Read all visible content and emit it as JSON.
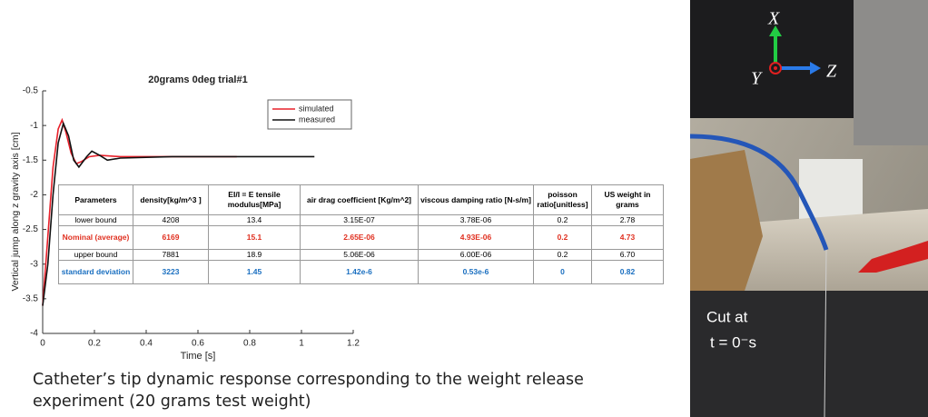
{
  "chart_data": {
    "type": "line",
    "title": "20grams 0deg trial#1",
    "x_label": "Time [s]",
    "y_label": "Vertical jump along z gravity axis [cm]",
    "xlim": [
      0,
      1.2
    ],
    "xticks": [
      0,
      0.2,
      0.4,
      0.6,
      0.8,
      1,
      1.2
    ],
    "ylim": [
      -4,
      -0.5
    ],
    "yticks": [
      -4,
      -3.5,
      -3,
      -2.5,
      -2,
      -1.5,
      -1,
      -0.5
    ],
    "legend": "upper right",
    "series": [
      {
        "name": "simulated",
        "color": "#e8202a",
        "x": [
          0,
          0.02,
          0.04,
          0.06,
          0.075,
          0.09,
          0.11,
          0.13,
          0.15,
          0.18,
          0.22,
          0.3,
          0.5,
          0.75
        ],
        "values": [
          -3.6,
          -2.6,
          -1.6,
          -1.05,
          -0.92,
          -1.1,
          -1.4,
          -1.55,
          -1.52,
          -1.45,
          -1.43,
          -1.45,
          -1.45,
          -1.45
        ]
      },
      {
        "name": "measured",
        "color": "#111111",
        "x": [
          0,
          0.02,
          0.04,
          0.06,
          0.08,
          0.1,
          0.12,
          0.14,
          0.17,
          0.19,
          0.22,
          0.25,
          0.3,
          0.5,
          1.05
        ],
        "values": [
          -3.6,
          -3.0,
          -2.0,
          -1.25,
          -0.97,
          -1.15,
          -1.5,
          -1.6,
          -1.45,
          -1.37,
          -1.43,
          -1.5,
          -1.47,
          -1.45,
          -1.45
        ]
      }
    ]
  },
  "table": {
    "header": [
      "Parameters",
      "density[kg/m^3 ]",
      "EI/I = E tensile modulus[MPa]",
      "air drag coefficient [Kg/m^2]",
      "viscous damping ratio [N-s/m]",
      "poisson ratio[unitless]",
      "US weight in grams"
    ],
    "rows": [
      [
        "lower bound",
        "4208",
        "13.4",
        "3.15E-07",
        "3.78E-06",
        "0.2",
        "2.78"
      ],
      [
        "Nominal (average)",
        "6169",
        "15.1",
        "2.65E-06",
        "4.93E-06",
        "0.2",
        "4.73"
      ],
      [
        "upper bound",
        "7881",
        "18.9",
        "5.06E-06",
        "6.00E-06",
        "0.2",
        "6.70"
      ],
      [
        "standard deviation",
        "3223",
        "1.45",
        "1.42e-6",
        "0.53e-6",
        "0",
        "0.82"
      ]
    ]
  },
  "caption": "Catheter’s tip dynamic response corresponding to the weight release experiment (20 grams test weight)",
  "photo": {
    "axis_x": "X",
    "axis_y": "Y",
    "axis_z": "Z",
    "cut_line1": "Cut at",
    "cut_line2": "t = 0⁻s"
  }
}
